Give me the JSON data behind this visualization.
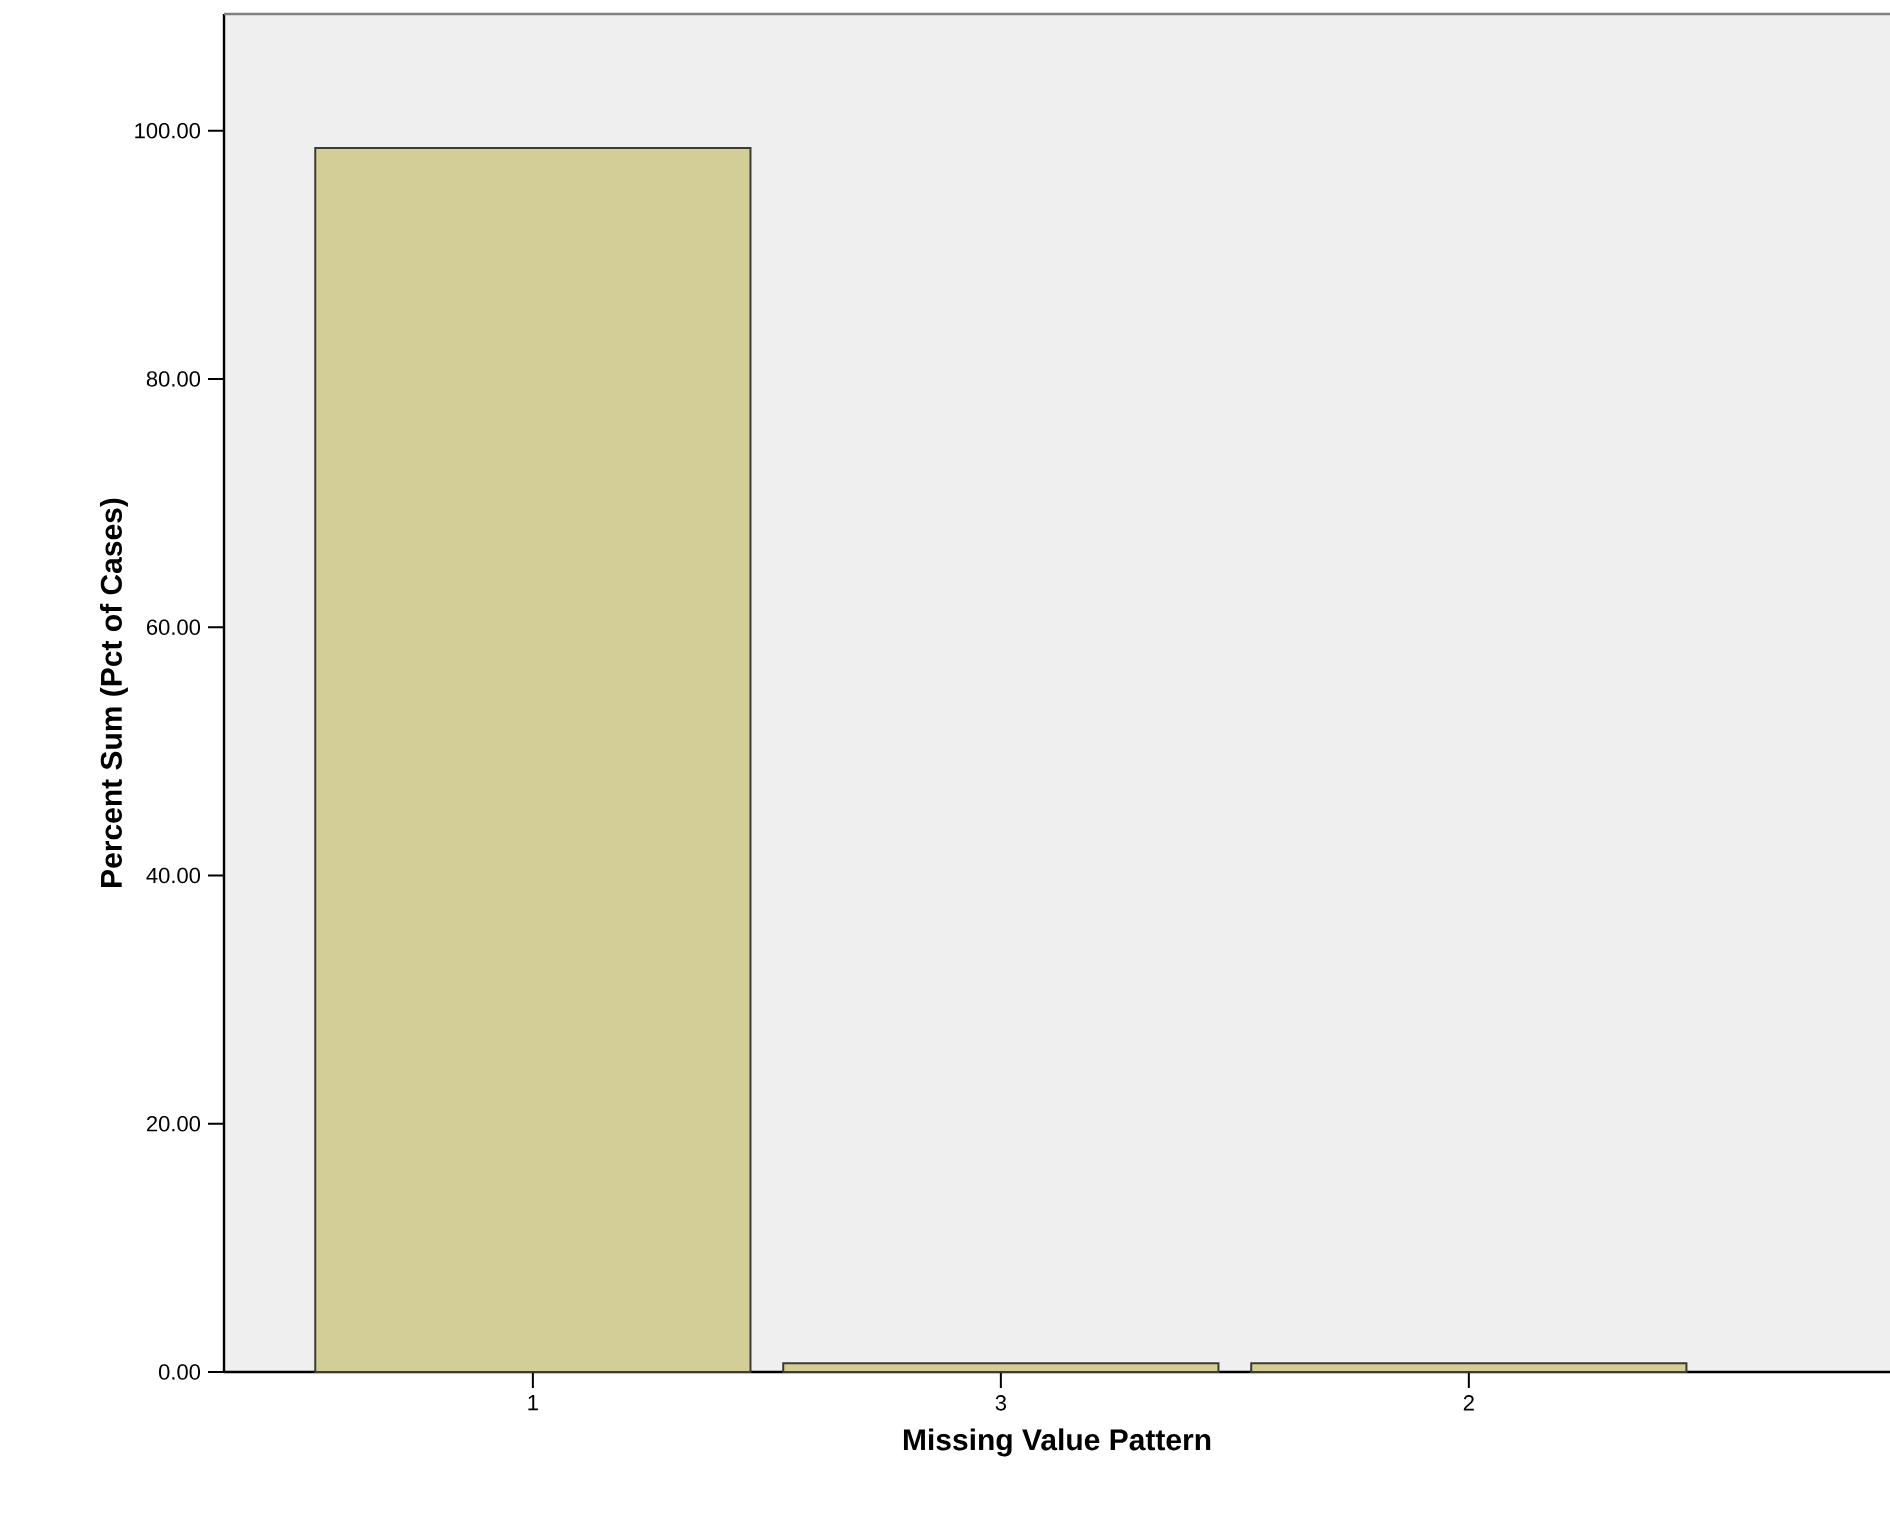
{
  "chart_data": {
    "type": "bar",
    "xlabel": "Missing Value Pattern",
    "ylabel": "Percent Sum (Pct of Cases)",
    "categories": [
      "1",
      "3",
      "2"
    ],
    "values": [
      98.6,
      0.7,
      0.7
    ],
    "color": "#d3ce98",
    "ylim": [
      0,
      109.4
    ],
    "yticks": [
      {
        "value": 0,
        "label": "0.00"
      },
      {
        "value": 20,
        "label": "20.00"
      },
      {
        "value": 40,
        "label": "40.00"
      },
      {
        "value": 60,
        "label": "60.00"
      },
      {
        "value": 80,
        "label": "80.00"
      },
      {
        "value": 100,
        "label": "100.00"
      }
    ]
  }
}
